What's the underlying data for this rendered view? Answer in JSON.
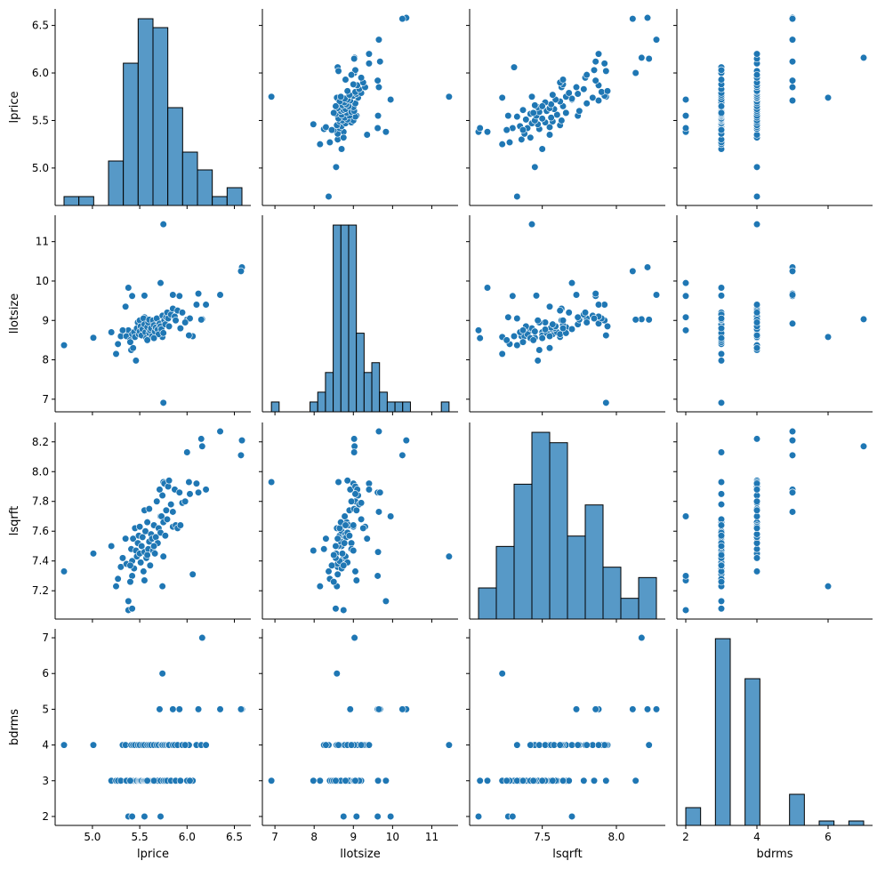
{
  "chart_data": {
    "type": "pairplot",
    "variables": [
      "lprice",
      "llotsize",
      "lsqrft",
      "bdrms"
    ],
    "diagonal": "histogram",
    "off_diagonal": "scatter",
    "colors": {
      "point": "#1f77b4",
      "point_edge": "#ffffff",
      "hist_fill": "#5799c7",
      "hist_edge": "#000000"
    },
    "hist_bins": {
      "lprice": 12,
      "llotsize": 23,
      "lsqrft": 10,
      "bdrms": 12
    },
    "limits": {
      "lprice": [
        4.606,
        6.674
      ],
      "llotsize": [
        6.68,
        11.67
      ],
      "lsqrft": [
        7.01,
        8.33
      ],
      "bdrms": [
        1.75,
        7.25
      ]
    },
    "x_ticks": {
      "lprice": [
        "5.0",
        "5.5",
        "6.0",
        "6.5"
      ],
      "llotsize": [
        "7",
        "8",
        "9",
        "10",
        "11"
      ],
      "lsqrft": [
        "7.5",
        "8.0"
      ],
      "bdrms": [
        "2",
        "4",
        "6"
      ]
    },
    "y_ticks": {
      "lprice": [
        "5.0",
        "5.5",
        "6.0",
        "6.5"
      ],
      "llotsize": [
        "7",
        "8",
        "9",
        "10",
        "11"
      ],
      "lsqrft": [
        "7.2",
        "7.4",
        "7.6",
        "7.8",
        "8.0",
        "8.2"
      ],
      "bdrms": [
        "2",
        "3",
        "4",
        "5",
        "6",
        "7"
      ]
    },
    "observations_columns": [
      "lprice",
      "llotsize",
      "lsqrft",
      "bdrms"
    ],
    "observations": [
      [
        4.7,
        8.37,
        7.33,
        4
      ],
      [
        5.75,
        11.44,
        7.43,
        4
      ],
      [
        5.75,
        6.91,
        7.93,
        3
      ],
      [
        6.58,
        10.35,
        8.21,
        5
      ],
      [
        6.57,
        10.25,
        8.11,
        5
      ],
      [
        6.16,
        9.03,
        8.17,
        7
      ],
      [
        5.74,
        8.58,
        7.23,
        6
      ],
      [
        6.35,
        9.65,
        8.27,
        5
      ],
      [
        6.06,
        8.6,
        7.31,
        3
      ],
      [
        5.38,
        8.75,
        7.07,
        2
      ],
      [
        5.42,
        8.55,
        7.08,
        3
      ],
      [
        5.72,
        9.95,
        7.7,
        2
      ],
      [
        5.38,
        9.83,
        7.13,
        3
      ],
      [
        5.55,
        9.08,
        7.27,
        2
      ],
      [
        5.42,
        9.62,
        7.3,
        2
      ],
      [
        5.01,
        8.56,
        7.45,
        4
      ],
      [
        5.2,
        8.7,
        7.5,
        3
      ],
      [
        5.25,
        8.15,
        7.23,
        3
      ],
      [
        5.27,
        8.4,
        7.28,
        3
      ],
      [
        5.3,
        8.6,
        7.36,
        3
      ],
      [
        5.32,
        8.75,
        7.42,
        4
      ],
      [
        5.35,
        9.35,
        7.55,
        4
      ],
      [
        5.36,
        8.6,
        7.38,
        3
      ],
      [
        5.4,
        8.5,
        7.26,
        3
      ],
      [
        5.41,
        8.25,
        7.48,
        4
      ],
      [
        5.42,
        8.65,
        7.4,
        3
      ],
      [
        5.43,
        8.3,
        7.55,
        4
      ],
      [
        5.44,
        8.7,
        7.35,
        3
      ],
      [
        5.45,
        8.58,
        7.62,
        4
      ],
      [
        5.46,
        7.98,
        7.47,
        3
      ],
      [
        5.47,
        8.8,
        7.43,
        3
      ],
      [
        5.48,
        8.95,
        7.52,
        4
      ],
      [
        5.49,
        8.65,
        7.57,
        3
      ],
      [
        5.5,
        8.72,
        7.45,
        3
      ],
      [
        5.5,
        9.0,
        7.63,
        4
      ],
      [
        5.51,
        8.85,
        7.39,
        3
      ],
      [
        5.52,
        8.62,
        7.5,
        3
      ],
      [
        5.53,
        8.78,
        7.56,
        4
      ],
      [
        5.54,
        9.05,
        7.33,
        3
      ],
      [
        5.55,
        8.9,
        7.74,
        4
      ],
      [
        5.55,
        9.63,
        7.46,
        3
      ],
      [
        5.56,
        8.7,
        7.6,
        3
      ],
      [
        5.57,
        8.55,
        7.42,
        3
      ],
      [
        5.58,
        8.83,
        7.66,
        4
      ],
      [
        5.59,
        8.95,
        7.48,
        3
      ],
      [
        5.6,
        8.68,
        7.53,
        3
      ],
      [
        5.6,
        9.02,
        7.75,
        4
      ],
      [
        5.61,
        8.75,
        7.37,
        3
      ],
      [
        5.62,
        8.8,
        7.58,
        4
      ],
      [
        5.63,
        8.6,
        7.55,
        3
      ],
      [
        5.64,
        9.0,
        7.47,
        3
      ],
      [
        5.65,
        8.88,
        7.64,
        4
      ],
      [
        5.66,
        8.72,
        7.45,
        3
      ],
      [
        5.67,
        8.82,
        7.56,
        3
      ],
      [
        5.68,
        9.05,
        7.8,
        4
      ],
      [
        5.69,
        8.77,
        7.52,
        3
      ],
      [
        5.7,
        8.65,
        7.62,
        4
      ],
      [
        5.71,
        8.92,
        7.88,
        5
      ],
      [
        5.72,
        8.85,
        7.59,
        3
      ],
      [
        5.73,
        8.78,
        7.7,
        4
      ],
      [
        5.74,
        9.12,
        7.84,
        4
      ],
      [
        5.75,
        8.68,
        7.66,
        3
      ],
      [
        5.76,
        9.0,
        7.92,
        4
      ],
      [
        5.77,
        8.9,
        7.57,
        3
      ],
      [
        5.78,
        9.08,
        7.74,
        4
      ],
      [
        5.79,
        9.2,
        7.68,
        3
      ],
      [
        5.8,
        9.05,
        7.9,
        4
      ],
      [
        5.81,
        8.85,
        7.94,
        4
      ],
      [
        5.83,
        9.15,
        7.78,
        3
      ],
      [
        5.85,
        9.3,
        7.63,
        4
      ],
      [
        5.87,
        9.1,
        7.88,
        4
      ],
      [
        5.88,
        9.0,
        7.64,
        3
      ],
      [
        5.9,
        9.25,
        7.62,
        4
      ],
      [
        5.92,
        9.62,
        7.86,
        5
      ],
      [
        5.93,
        8.8,
        7.64,
        3
      ],
      [
        5.95,
        9.2,
        7.79,
        4
      ],
      [
        6.0,
        9.02,
        8.13,
        3
      ],
      [
        6.02,
        8.62,
        7.93,
        4
      ],
      [
        6.03,
        9.05,
        7.85,
        3
      ],
      [
        6.1,
        9.4,
        7.92,
        4
      ],
      [
        6.12,
        9.68,
        7.86,
        5
      ],
      [
        6.15,
        9.02,
        8.22,
        4
      ],
      [
        6.2,
        9.4,
        7.88,
        4
      ],
      [
        5.85,
        9.65,
        7.73,
        5
      ],
      [
        5.98,
        8.95,
        7.8,
        4
      ],
      [
        5.4,
        8.45,
        7.37,
        3
      ],
      [
        5.58,
        8.5,
        7.44,
        3
      ],
      [
        5.65,
        8.55,
        7.5,
        3
      ]
    ]
  }
}
